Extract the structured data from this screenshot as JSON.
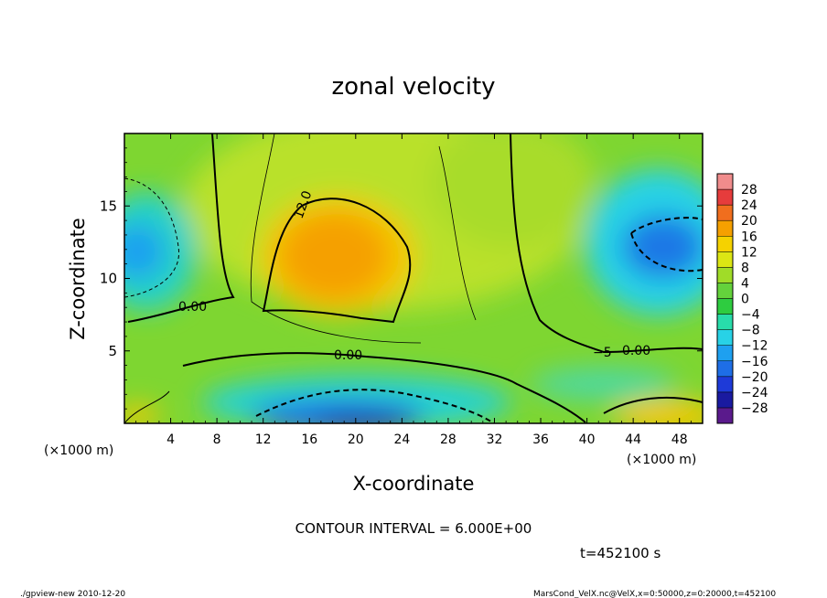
{
  "chart_data": {
    "type": "heatmap",
    "title": "zonal velocity",
    "xlabel": "X-coordinate",
    "ylabel": "Z-coordinate",
    "x_unit_left": "(×1000 m)",
    "x_unit_right": "(×1000 m)",
    "xlim": [
      0,
      50
    ],
    "ylim": [
      0,
      20
    ],
    "x_ticks": [
      4,
      8,
      12,
      16,
      20,
      24,
      28,
      32,
      36,
      40,
      44,
      48
    ],
    "y_ticks": [
      5,
      10,
      15
    ],
    "colorbar": {
      "levels": [
        -28,
        -24,
        -20,
        -16,
        -12,
        -8,
        -4,
        0,
        4,
        8,
        12,
        16,
        20,
        24,
        28
      ],
      "labels": [
        "28",
        "24",
        "20",
        "16",
        "12",
        "8",
        "4",
        "0",
        "−4",
        "−8",
        "−12",
        "−16",
        "−20",
        "−24",
        "−28"
      ],
      "colors": [
        "#5a1a8c",
        "#1a1aa0",
        "#1e3ad8",
        "#1e6ee6",
        "#1ea0f0",
        "#28d2e6",
        "#28dcaa",
        "#2ecc40",
        "#64d23c",
        "#a0dc28",
        "#dce614",
        "#f5d200",
        "#f5a000",
        "#f06e1e",
        "#e63c3c",
        "#f08c8c"
      ]
    },
    "contour_interval_text": "CONTOUR INTERVAL = 6.000E+00",
    "contour_labels": [
      "12.0",
      "0.00",
      "0.00",
      "0.00",
      "−5"
    ],
    "time_text": "t=452100 s",
    "grid": false
  },
  "footer": {
    "left": "./gpview-new  2010-12-20",
    "right": "MarsCond_VelX.nc@VelX,x=0:50000,z=0:20000,t=452100"
  },
  "colors": {
    "frame": "#000000",
    "background": "#ffffff"
  }
}
